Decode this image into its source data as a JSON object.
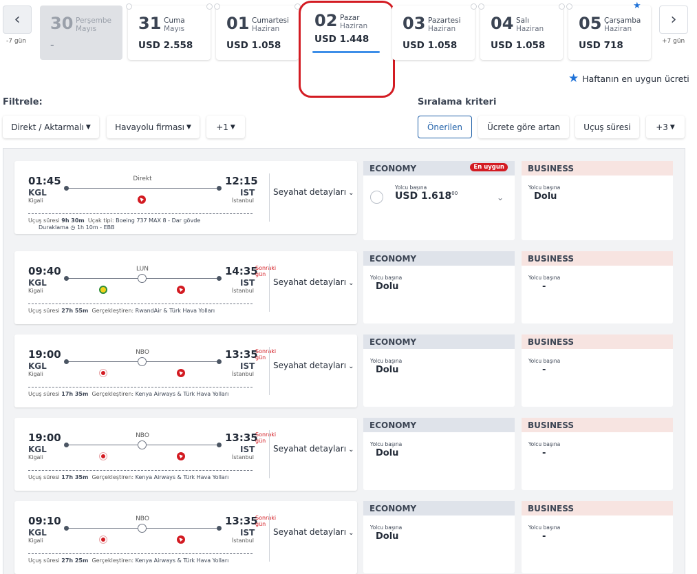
{
  "date_nav": {
    "prev_label": "-7 gün",
    "next_label": "+7 gün",
    "prev_icon": "chevron-left-icon",
    "next_icon": "chevron-right-icon",
    "days": [
      {
        "num": "30",
        "day": "Perşembe",
        "month": "Mayıs",
        "price": "-"
      },
      {
        "num": "31",
        "day": "Cuma",
        "month": "Mayıs",
        "price": "USD 2.558"
      },
      {
        "num": "01",
        "day": "Cumartesi",
        "month": "Haziran",
        "price": "USD 1.058"
      },
      {
        "num": "02",
        "day": "Pazar",
        "month": "Haziran",
        "price": "USD 1.448"
      },
      {
        "num": "03",
        "day": "Pazartesi",
        "month": "Haziran",
        "price": "USD 1.058"
      },
      {
        "num": "04",
        "day": "Salı",
        "month": "Haziran",
        "price": "USD 1.058"
      },
      {
        "num": "05",
        "day": "Çarşamba",
        "month": "Haziran",
        "price": "USD 718"
      }
    ],
    "legend": "Haftanın en uygun ücreti",
    "accent_color": "#3d8ee8",
    "highlight_color": "#d31b22"
  },
  "filters": {
    "title": "Filtrele:",
    "items": [
      "Direkt / Aktarmalı",
      "Havayolu firması",
      "+1"
    ]
  },
  "sort": {
    "title": "Sıralama kriteri",
    "items": [
      "Önerilen",
      "Ücrete göre artan",
      "Uçuş süresi",
      "+3"
    ]
  },
  "common": {
    "details": "Seyahat detayları",
    "economy": "ECONOMY",
    "business": "BUSINESS",
    "per_pax": "Yolcu başına",
    "next_day": "Sonraki gün",
    "duration_key": "Uçuş süresi",
    "operator_key": "Gerçekleştiren:",
    "aircraft_key": "Uçak tipi:",
    "stop_key": "Duraklama",
    "cheapest_badge": "En uygun"
  },
  "flights": [
    {
      "dep_time": "01:45",
      "dep_code": "KGL",
      "dep_city": "Kigali",
      "arr_time": "12:15",
      "arr_code": "IST",
      "arr_city": "İstanbul",
      "route_label": "Direkt",
      "duration": "9h 30m",
      "aircraft": "Boeing 737 MAX 8 - Dar gövde",
      "stop_info": "1h 10m - EBB",
      "economy_price": "USD 1.618",
      "economy_price_cents": "00",
      "business": "Dolu"
    },
    {
      "dep_time": "09:40",
      "dep_code": "KGL",
      "dep_city": "Kigali",
      "arr_time": "14:35",
      "arr_code": "IST",
      "arr_city": "İstanbul",
      "route_label": "LUN",
      "duration": "27h 55m",
      "operator": "RwandAir & Türk Hava Yolları",
      "economy": "Dolu",
      "business": "-"
    },
    {
      "dep_time": "19:00",
      "dep_code": "KGL",
      "dep_city": "Kigali",
      "arr_time": "13:35",
      "arr_code": "IST",
      "arr_city": "İstanbul",
      "route_label": "NBO",
      "duration": "17h 35m",
      "operator": "Kenya Airways & Türk Hava Yolları",
      "economy": "Dolu",
      "business": "-"
    },
    {
      "dep_time": "19:00",
      "dep_code": "KGL",
      "dep_city": "Kigali",
      "arr_time": "13:35",
      "arr_code": "IST",
      "arr_city": "İstanbul",
      "route_label": "NBO",
      "duration": "17h 35m",
      "operator": "Kenya Airways & Türk Hava Yolları",
      "economy": "Dolu",
      "business": "-"
    },
    {
      "dep_time": "09:10",
      "dep_code": "KGL",
      "dep_city": "Kigali",
      "arr_time": "13:35",
      "arr_code": "IST",
      "arr_city": "İstanbul",
      "route_label": "NBO",
      "duration": "27h 25m",
      "operator": "Kenya Airways & Türk Hava Yolları",
      "economy": "Dolu",
      "business": "-"
    }
  ]
}
